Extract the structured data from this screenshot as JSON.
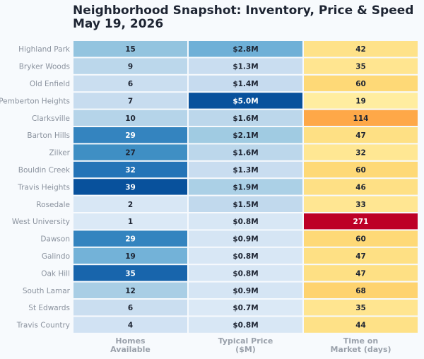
{
  "chart_data": {
    "type": "heatmap",
    "title_lines": [
      "Neighborhood Snapshot: Inventory, Price & Speed",
      "May 19, 2026"
    ],
    "rows": [
      "Highland Park",
      "Bryker Woods",
      "Old Enfield",
      "Pemberton Heights",
      "Clarksville",
      "Barton Hills",
      "Zilker",
      "Bouldin Creek",
      "Travis Heights",
      "Rosedale",
      "West University",
      "Dawson",
      "Galindo",
      "Oak Hill",
      "South Lamar",
      "St Edwards",
      "Travis Country"
    ],
    "columns": [
      {
        "label_lines": [
          "Homes",
          "Available"
        ],
        "palette": "blues",
        "values": [
          15,
          9,
          6,
          7,
          10,
          29,
          27,
          32,
          39,
          2,
          1,
          29,
          19,
          35,
          12,
          6,
          4
        ],
        "labels": [
          "15",
          "9",
          "6",
          "7",
          "10",
          "29",
          "27",
          "32",
          "39",
          "2",
          "1",
          "29",
          "19",
          "35",
          "12",
          "6",
          "4"
        ]
      },
      {
        "label_lines": [
          "Typical Price",
          "($M)"
        ],
        "palette": "blues",
        "values": [
          2.8,
          1.3,
          1.4,
          5.0,
          1.6,
          2.1,
          1.6,
          1.3,
          1.9,
          1.5,
          0.8,
          0.9,
          0.8,
          0.8,
          0.9,
          0.7,
          0.8
        ],
        "labels": [
          "$2.8M",
          "$1.3M",
          "$1.4M",
          "$5.0M",
          "$1.6M",
          "$2.1M",
          "$1.6M",
          "$1.3M",
          "$1.9M",
          "$1.5M",
          "$0.8M",
          "$0.9M",
          "$0.8M",
          "$0.8M",
          "$0.9M",
          "$0.7M",
          "$0.8M"
        ]
      },
      {
        "label_lines": [
          "Time on",
          "Market (days)"
        ],
        "palette": "yellow-red",
        "values": [
          42,
          35,
          60,
          19,
          114,
          47,
          32,
          60,
          46,
          33,
          271,
          60,
          47,
          47,
          68,
          35,
          44
        ],
        "labels": [
          "42",
          "35",
          "60",
          "19",
          "114",
          "47",
          "32",
          "60",
          "46",
          "33",
          "271",
          "60",
          "47",
          "47",
          "68",
          "35",
          "44"
        ]
      }
    ],
    "grid": false,
    "legend": "none"
  }
}
